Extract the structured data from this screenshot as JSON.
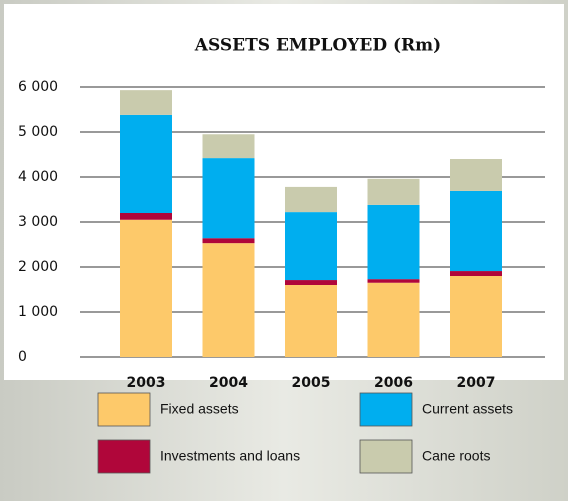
{
  "chart_data": {
    "type": "stacked_bar",
    "title": "ASSETS EMPLOYED (Rm)",
    "categories": [
      "2003",
      "2004",
      "2005",
      "2006",
      "2007"
    ],
    "series": [
      {
        "name": "Fixed assets",
        "color": "#fdc96a",
        "values": [
          3050,
          2530,
          1600,
          1650,
          1800
        ]
      },
      {
        "name": "Investments and loans",
        "color": "#b0063a",
        "values": [
          150,
          110,
          110,
          80,
          110
        ]
      },
      {
        "name": "Current assets",
        "color": "#00aeef",
        "values": [
          2180,
          1780,
          1510,
          1650,
          1780
        ]
      },
      {
        "name": "Cane roots",
        "color": "#c9cbad",
        "values": [
          550,
          530,
          560,
          580,
          710
        ]
      }
    ],
    "ylim": [
      0,
      6000
    ],
    "yticks": [
      0,
      {
        "value": 1000,
        "label": "1 000"
      },
      {
        "value": 2000,
        "label": "2 000"
      },
      {
        "value": 3000,
        "label": "3 000"
      },
      {
        "value": 4000,
        "label": "4 000"
      },
      {
        "value": 5000,
        "label": "5 000"
      },
      {
        "value": 6000,
        "label": "6 000"
      }
    ],
    "grid": true
  }
}
